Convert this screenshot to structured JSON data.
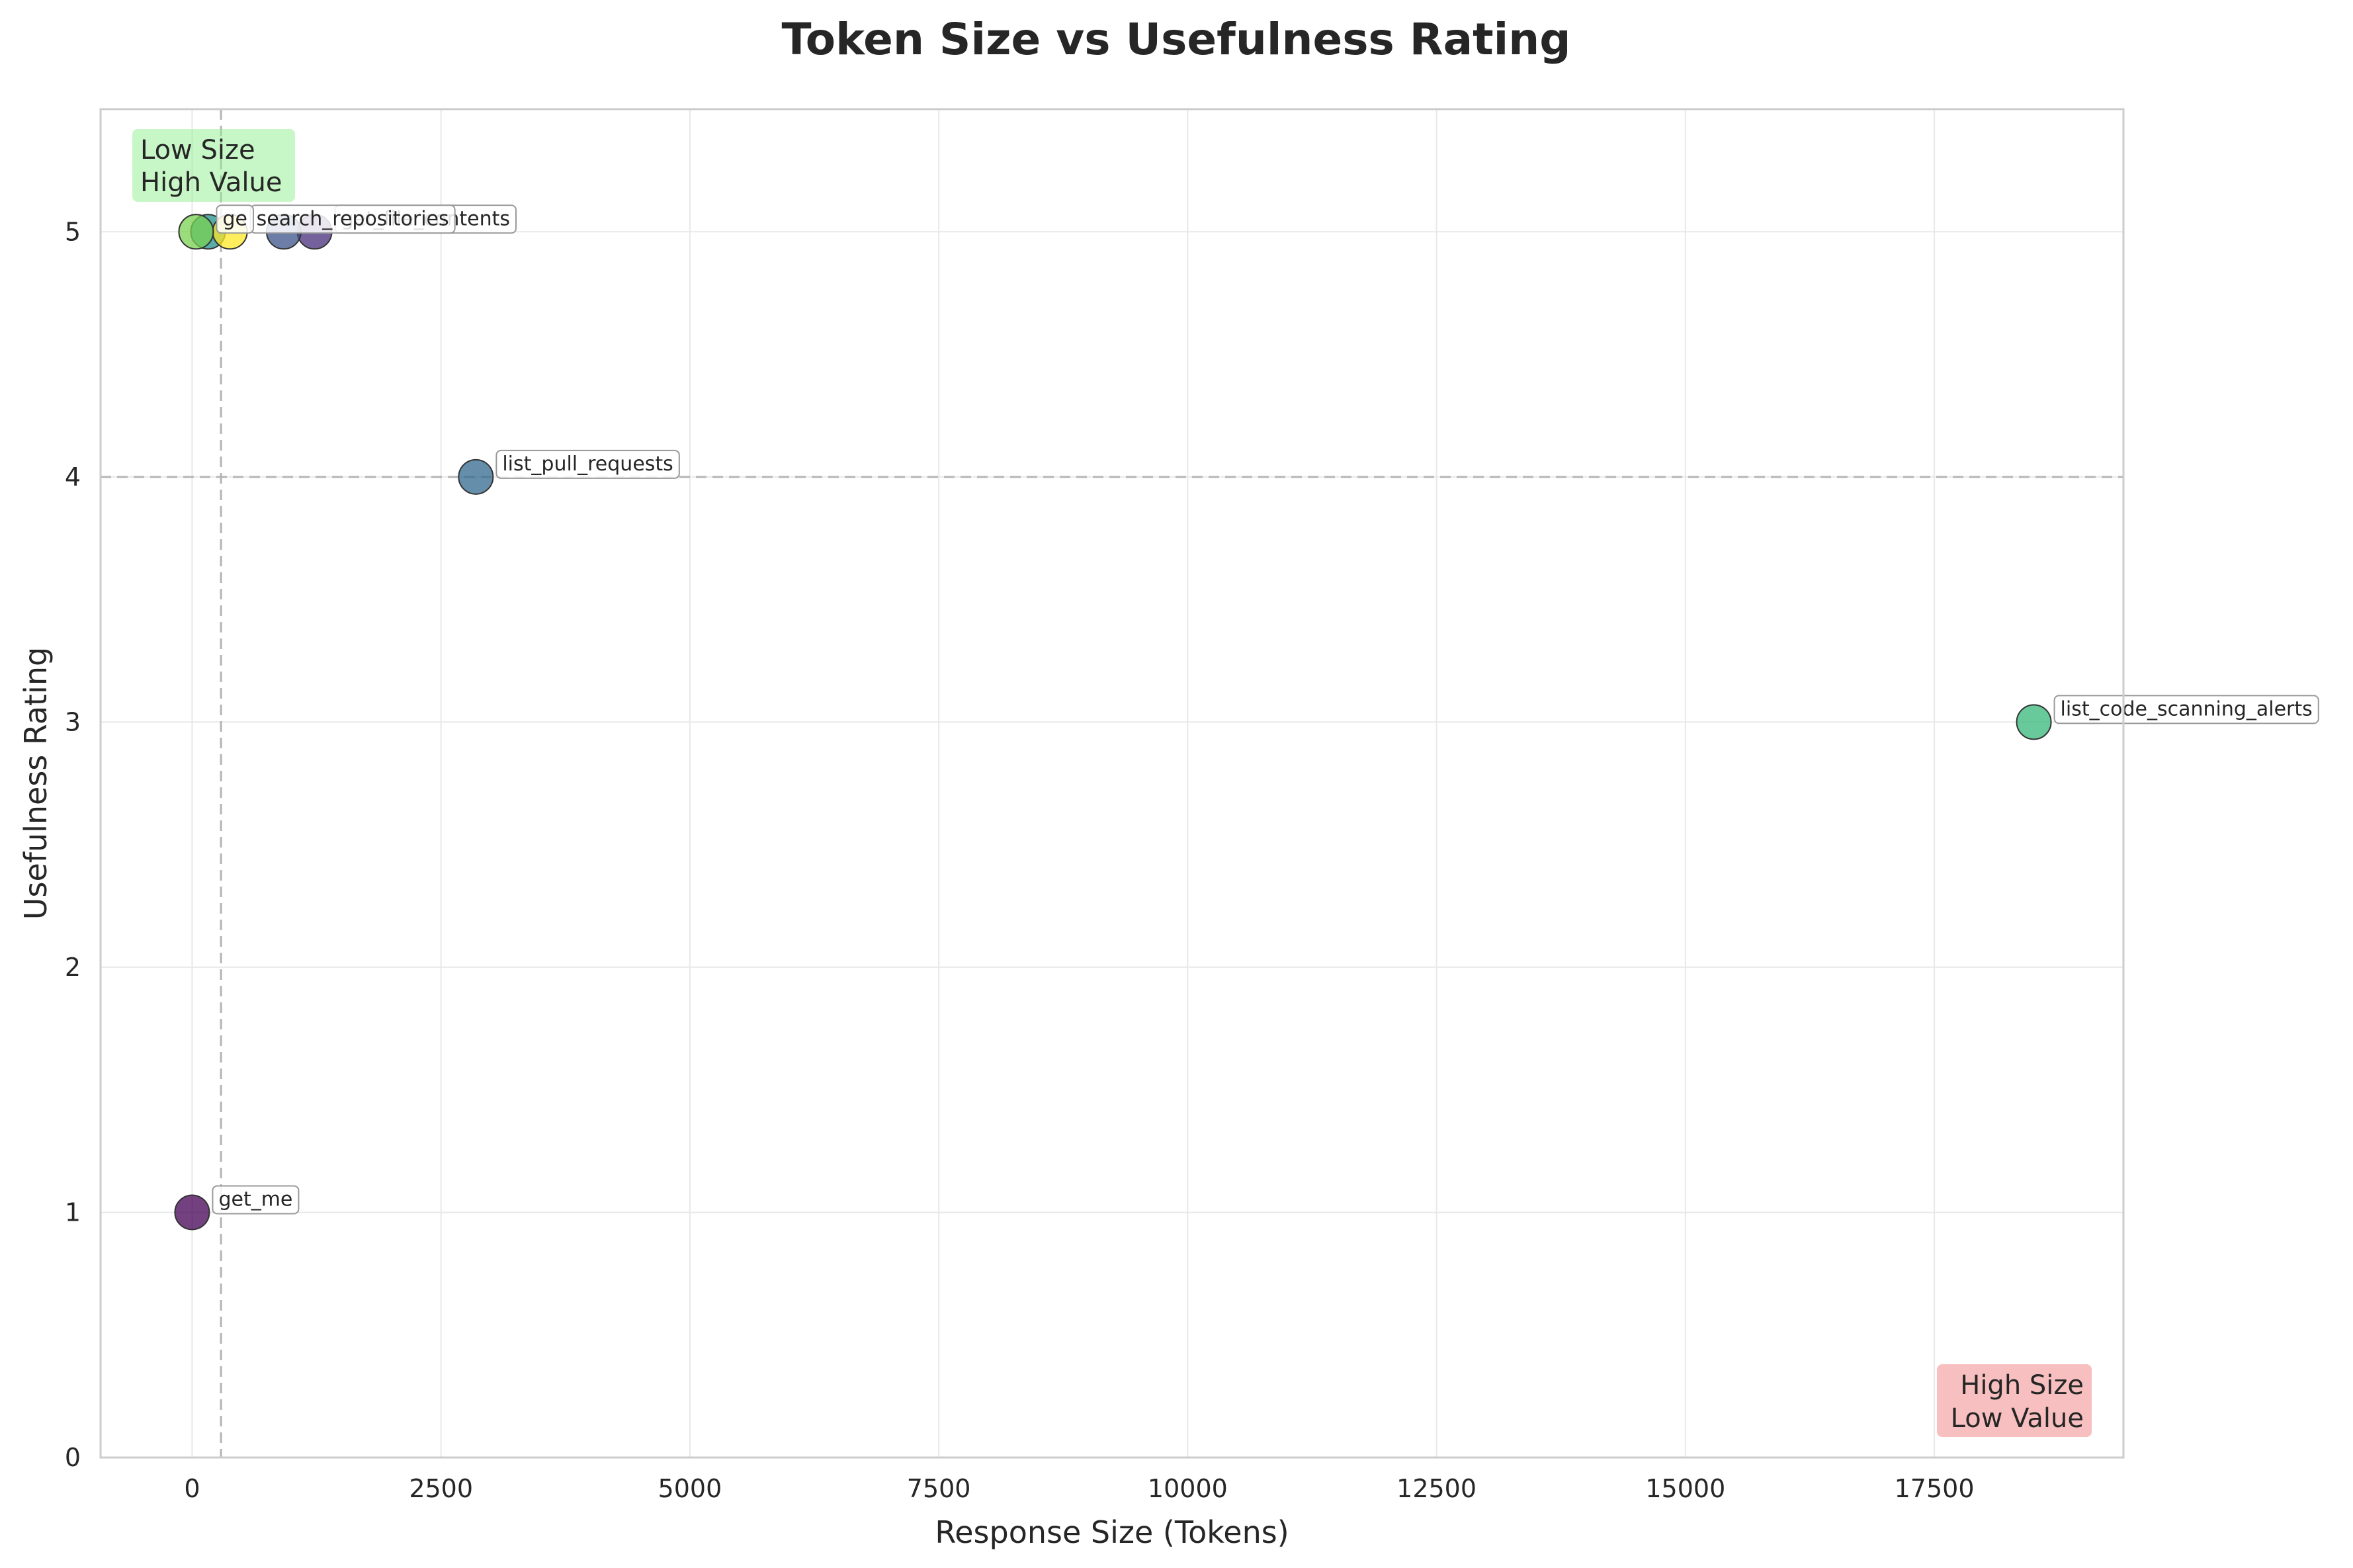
{
  "chart_data": {
    "type": "scatter",
    "title": "Token Size vs Usefulness Rating",
    "xlabel": "Response Size (Tokens)",
    "ylabel": "Usefulness Rating",
    "xlim": [
      -920,
      19400
    ],
    "ylim": [
      0,
      5.5
    ],
    "xticks": [
      0,
      2500,
      5000,
      7500,
      10000,
      12500,
      15000,
      17500
    ],
    "yticks": [
      0,
      1,
      2,
      3,
      4,
      5
    ],
    "grid": true,
    "reference_lines": {
      "x": 290,
      "y": 4
    },
    "quadrant_labels": {
      "top_left": {
        "line1": "Low Size",
        "line2": "High Value",
        "color": "#90ee90"
      },
      "bottom_right": {
        "line1": "High Size",
        "line2": "Low Value",
        "color": "#f08080"
      }
    },
    "points": [
      {
        "label": "get_me",
        "x": 0,
        "y": 1,
        "color": "#440154",
        "show_label": true,
        "label_text": "get_me"
      },
      {
        "label": "list_pull_requests",
        "x": 2850,
        "y": 4,
        "color": "#31688e",
        "show_label": true,
        "label_text": "list_pull_requests"
      },
      {
        "label": "list_code_scanning_alerts",
        "x": 18500,
        "y": 3,
        "color": "#35b779",
        "show_label": true,
        "label_text": "list_code_scanning_alerts"
      },
      {
        "label": "get_file_contents",
        "x": 1230,
        "y": 5,
        "color": "#472d7b",
        "show_label": true,
        "label_text": "get_file_contents"
      },
      {
        "label": "point_5",
        "x": 920,
        "y": 5,
        "color": "#3b528b",
        "show_label": false,
        "label_text": ""
      },
      {
        "label": "point_6",
        "x": 160,
        "y": 5,
        "color": "#21918c",
        "show_label": false,
        "label_text": ""
      },
      {
        "label": "search_repositories",
        "x": 380,
        "y": 5,
        "color": "#fde725",
        "show_label": true,
        "label_text": "search_repositories"
      },
      {
        "label": "get_issue",
        "x": 40,
        "y": 5,
        "color": "#7ad151",
        "show_label": true,
        "label_text": "ge"
      }
    ]
  }
}
